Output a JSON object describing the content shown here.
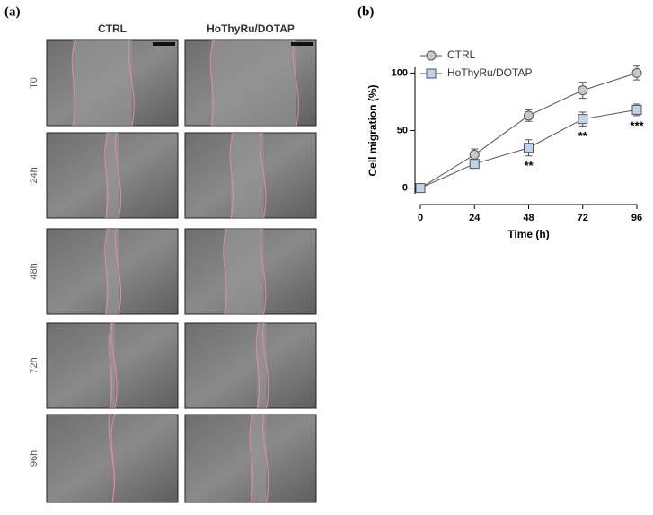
{
  "panel_labels": [
    "(a)",
    "(b)"
  ],
  "image_grid": {
    "columns": [
      "CTRL",
      "HoThyRu/DOTAP"
    ],
    "rows": [
      "T0",
      "24h",
      "48h",
      "72h",
      "96h"
    ]
  },
  "chart_data": {
    "type": "line",
    "xlabel": "Time (h)",
    "ylabel": "Cell migration (%)",
    "x": [
      0,
      24,
      48,
      72,
      96
    ],
    "series": [
      {
        "name": "CTRL",
        "color": "#c8c8c8",
        "marker": "circle",
        "values": [
          0,
          29,
          63,
          85,
          100
        ],
        "error": [
          0,
          5,
          5,
          7,
          6
        ]
      },
      {
        "name": "HoThyRu/DOTAP",
        "color": "#bcd4ee",
        "marker": "square",
        "values": [
          0,
          21,
          35,
          60,
          68
        ],
        "error": [
          0,
          3,
          7,
          6,
          5
        ]
      }
    ],
    "annotations": [
      {
        "x": 48,
        "text": "**"
      },
      {
        "x": 72,
        "text": "**"
      },
      {
        "x": 96,
        "text": "***"
      }
    ],
    "xlim": [
      0,
      96
    ],
    "xticks": [
      0,
      24,
      48,
      72,
      96
    ],
    "ylim": [
      -5,
      105
    ],
    "yticks": [
      0,
      50,
      100
    ],
    "legend": "upper left"
  }
}
